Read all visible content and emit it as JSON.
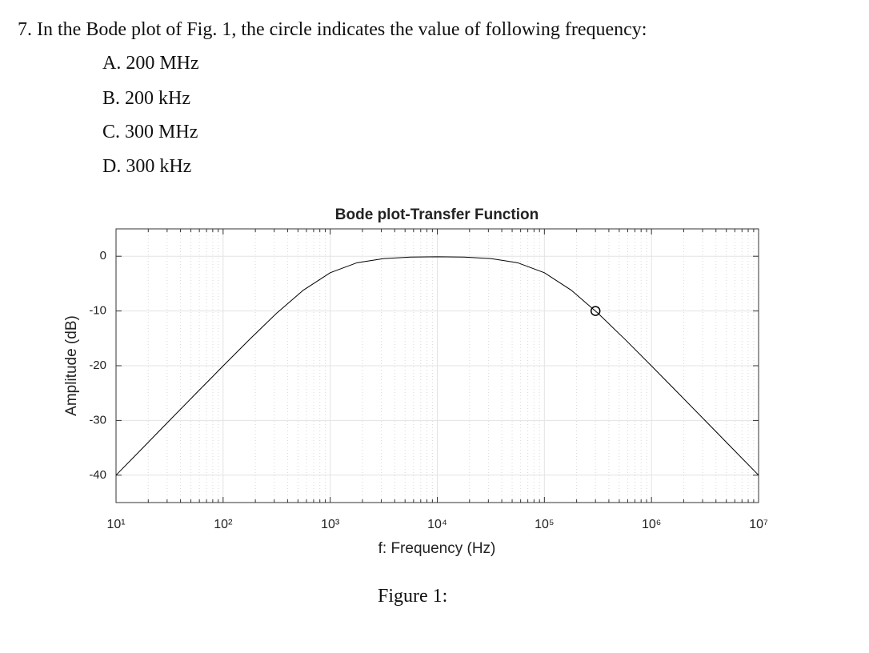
{
  "question": {
    "number": "7.",
    "text": "In the Bode plot of Fig. 1, the circle indicates the value of following frequency:",
    "options": [
      {
        "letter": "A.",
        "text": "200 MHz"
      },
      {
        "letter": "B.",
        "text": "200 kHz"
      },
      {
        "letter": "C.",
        "text": "300 MHz"
      },
      {
        "letter": "D.",
        "text": "300 kHz"
      }
    ]
  },
  "chart_data": {
    "type": "line",
    "title": "Bode plot-Transfer Function",
    "xlabel": "f: Frequency (Hz)",
    "ylabel": "Amplitude (dB)",
    "x": [
      10,
      17.8,
      31.6,
      56.2,
      100,
      177.8,
      316,
      562,
      1000,
      1778,
      3162,
      5623,
      10000,
      17783,
      31623,
      56234,
      100000,
      177828,
      316228,
      562341,
      1000000,
      1778279,
      3162278,
      5623413,
      10000000
    ],
    "series": [
      {
        "color": "#000000",
        "values": [
          -40,
          -35,
          -30,
          -25.01,
          -20.04,
          -15.14,
          -10.41,
          -6.19,
          -3.01,
          -1.19,
          -0.42,
          -0.15,
          -0.09,
          -0.15,
          -0.42,
          -1.19,
          -3.01,
          -6.19,
          -10.41,
          -15.13,
          -20.04,
          -25.01,
          -30,
          -35,
          -40
        ]
      }
    ],
    "marker": {
      "x": 300000,
      "y": -10
    },
    "xscale": "log",
    "xlim": [
      10,
      10000000
    ],
    "ylim": [
      -45,
      5
    ],
    "xticks": [
      {
        "value": 10,
        "label": "10¹"
      },
      {
        "value": 100,
        "label": "10²"
      },
      {
        "value": 1000,
        "label": "10³"
      },
      {
        "value": 10000,
        "label": "10⁴"
      },
      {
        "value": 100000,
        "label": "10⁵"
      },
      {
        "value": 1000000,
        "label": "10⁶"
      },
      {
        "value": 10000000,
        "label": "10⁷"
      }
    ],
    "yticks": [
      0,
      -10,
      -20,
      -30,
      -40
    ],
    "grid": true
  },
  "caption": "Figure 1:"
}
